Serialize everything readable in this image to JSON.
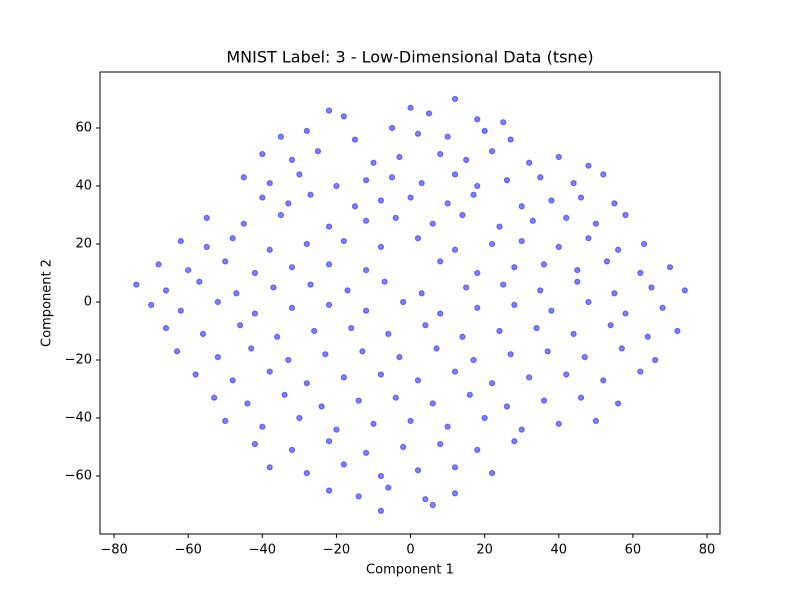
{
  "chart_data": {
    "type": "scatter",
    "title": "MNIST Label: 3 - Low-Dimensional Data (tsne)",
    "x_label": "Component 1",
    "y_label": "Component 2",
    "color": "#0000ff",
    "alpha": 0.5,
    "grid": false,
    "xlim": [
      -83.8,
      83.5
    ],
    "ylim": [
      -80,
      79.3
    ],
    "xticks": [
      {
        "value": -80,
        "label": "−80"
      },
      {
        "value": -60,
        "label": "−60"
      },
      {
        "value": -40,
        "label": "−40"
      },
      {
        "value": -20,
        "label": "−20"
      },
      0,
      20,
      40,
      60,
      80
    ],
    "yticks": [
      {
        "value": -60,
        "label": "−60"
      },
      {
        "value": -40,
        "label": "−40"
      },
      {
        "value": -20,
        "label": "−20"
      },
      0,
      20,
      40,
      60
    ],
    "x": [
      -22,
      -18,
      0,
      5,
      12,
      18,
      25,
      -35,
      -28,
      -15,
      -5,
      2,
      10,
      20,
      27,
      -40,
      -32,
      -25,
      -10,
      -3,
      8,
      15,
      22,
      32,
      40,
      48,
      -45,
      -38,
      -30,
      -20,
      -12,
      -5,
      3,
      12,
      18,
      26,
      35,
      44,
      52,
      -40,
      -33,
      -27,
      -15,
      -8,
      0,
      10,
      17,
      30,
      38,
      46,
      55,
      -55,
      -45,
      -35,
      -22,
      -12,
      -4,
      6,
      14,
      24,
      33,
      42,
      50,
      58,
      -62,
      -55,
      -48,
      -38,
      -28,
      -18,
      -8,
      2,
      12,
      22,
      30,
      40,
      48,
      56,
      63,
      -68,
      -60,
      -50,
      -42,
      -32,
      -22,
      -12,
      8,
      18,
      28,
      36,
      45,
      53,
      62,
      70,
      -74,
      -66,
      -57,
      -47,
      -37,
      -27,
      -17,
      -7,
      3,
      15,
      25,
      35,
      45,
      55,
      65,
      74,
      -70,
      -62,
      -52,
      -42,
      -32,
      -22,
      -12,
      -2,
      8,
      18,
      28,
      38,
      48,
      58,
      68,
      -66,
      -56,
      -46,
      -36,
      -26,
      -16,
      -6,
      4,
      14,
      24,
      34,
      44,
      54,
      64,
      72,
      -63,
      -52,
      -43,
      -33,
      -23,
      -13,
      -3,
      7,
      17,
      27,
      37,
      47,
      57,
      66,
      -58,
      -48,
      -38,
      -28,
      -18,
      -8,
      2,
      12,
      22,
      32,
      42,
      52,
      62,
      -53,
      -44,
      -34,
      -24,
      -14,
      -4,
      6,
      16,
      26,
      36,
      46,
      56,
      -50,
      -40,
      -30,
      -20,
      -10,
      0,
      10,
      20,
      30,
      40,
      50,
      -42,
      -32,
      -22,
      -12,
      -2,
      8,
      18,
      28,
      -38,
      -28,
      -18,
      -8,
      2,
      12,
      22,
      -22,
      -14,
      -6,
      4,
      12,
      -8,
      6
    ],
    "y": [
      66,
      64,
      67,
      65,
      70,
      63,
      62,
      57,
      59,
      56,
      60,
      58,
      57,
      59,
      56,
      51,
      49,
      52,
      48,
      50,
      51,
      49,
      52,
      48,
      50,
      47,
      43,
      41,
      44,
      40,
      42,
      43,
      41,
      44,
      40,
      42,
      43,
      41,
      44,
      36,
      34,
      37,
      33,
      35,
      36,
      34,
      37,
      33,
      35,
      36,
      34,
      29,
      27,
      30,
      26,
      28,
      29,
      27,
      30,
      26,
      28,
      29,
      27,
      30,
      21,
      19,
      22,
      18,
      20,
      21,
      19,
      22,
      18,
      20,
      21,
      19,
      22,
      18,
      20,
      13,
      11,
      14,
      10,
      12,
      13,
      11,
      14,
      10,
      12,
      13,
      11,
      14,
      10,
      12,
      6,
      4,
      7,
      3,
      5,
      6,
      4,
      7,
      3,
      5,
      6,
      4,
      7,
      3,
      5,
      4,
      -1,
      -3,
      0,
      -4,
      -2,
      -1,
      -3,
      0,
      -4,
      -2,
      -1,
      -3,
      0,
      -4,
      -2,
      -9,
      -11,
      -8,
      -12,
      -10,
      -9,
      -11,
      -8,
      -12,
      -10,
      -9,
      -11,
      -8,
      -12,
      -10,
      -17,
      -19,
      -16,
      -20,
      -18,
      -17,
      -19,
      -16,
      -20,
      -18,
      -17,
      -19,
      -16,
      -20,
      -25,
      -27,
      -24,
      -28,
      -26,
      -25,
      -27,
      -24,
      -28,
      -26,
      -25,
      -27,
      -24,
      -33,
      -35,
      -32,
      -36,
      -34,
      -33,
      -35,
      -32,
      -36,
      -34,
      -33,
      -35,
      -41,
      -43,
      -40,
      -44,
      -42,
      -41,
      -43,
      -40,
      -44,
      -42,
      -41,
      -49,
      -51,
      -48,
      -52,
      -50,
      -49,
      -51,
      -48,
      -57,
      -59,
      -56,
      -60,
      -58,
      -57,
      -59,
      -65,
      -67,
      -64,
      -68,
      -66,
      -72,
      -70
    ]
  }
}
